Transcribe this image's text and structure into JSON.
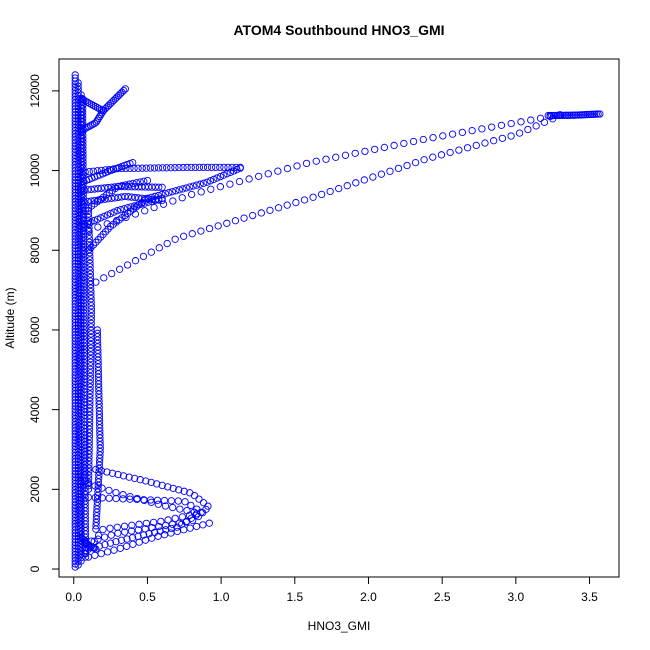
{
  "chart_data": {
    "type": "scatter",
    "title": "ATOM4 Southbound HNO3_GMI",
    "xlabel": "HNO3_GMI",
    "ylabel": "Altitude (m)",
    "xlim": [
      -0.1,
      3.7
    ],
    "ylim": [
      -200,
      12800
    ],
    "xticks": [
      0.0,
      0.5,
      1.0,
      1.5,
      2.0,
      2.5,
      3.0,
      3.5
    ],
    "xtick_labels": [
      "0.0",
      "0.5",
      "1.0",
      "1.5",
      "2.0",
      "2.5",
      "3.0",
      "3.5"
    ],
    "yticks": [
      0,
      2000,
      4000,
      6000,
      8000,
      10000,
      12000
    ],
    "ytick_labels": [
      "0",
      "2000",
      "4000",
      "6000",
      "8000",
      "10000",
      "12000"
    ],
    "marker": "open-circle",
    "point_color": "#0000ff",
    "grid": false,
    "legend": "none",
    "series": [
      {
        "comment_free": true,
        "segments": [
          {
            "points": [
              [
                0.01,
                50
              ],
              [
                0.01,
                12400
              ]
            ],
            "n": 160
          },
          {
            "points": [
              [
                0.03,
                100
              ],
              [
                0.03,
                12200
              ]
            ],
            "n": 150
          },
          {
            "points": [
              [
                0.05,
                200
              ],
              [
                0.05,
                11900
              ]
            ],
            "n": 140
          },
          {
            "points": [
              [
                0.08,
                300
              ],
              [
                0.06,
                11800
              ]
            ],
            "n": 140
          },
          {
            "points": [
              [
                0.1,
                2000
              ],
              [
                0.12,
                6500
              ],
              [
                0.1,
                9000
              ]
            ],
            "n": 80
          },
          {
            "points": [
              [
                0.15,
                1000
              ],
              [
                0.18,
                3000
              ],
              [
                0.16,
                6000
              ]
            ],
            "n": 60
          },
          {
            "points": [
              [
                0.05,
                11800
              ],
              [
                0.2,
                11500
              ],
              [
                0.35,
                12050
              ]
            ],
            "n": 25
          },
          {
            "points": [
              [
                0.05,
                11000
              ],
              [
                0.15,
                11200
              ],
              [
                0.2,
                11500
              ]
            ],
            "n": 15
          },
          {
            "points": [
              [
                0.05,
                9950
              ],
              [
                0.3,
                10050
              ],
              [
                0.8,
                10080
              ],
              [
                1.13,
                10080
              ]
            ],
            "n": 40
          },
          {
            "points": [
              [
                0.05,
                9700
              ],
              [
                0.25,
                10000
              ],
              [
                0.4,
                10200
              ]
            ],
            "n": 20
          },
          {
            "points": [
              [
                0.05,
                9500
              ],
              [
                0.3,
                9600
              ],
              [
                0.6,
                9580
              ]
            ],
            "n": 25
          },
          {
            "points": [
              [
                0.05,
                9200
              ],
              [
                0.35,
                9350
              ],
              [
                0.6,
                9250
              ]
            ],
            "n": 25
          },
          {
            "points": [
              [
                0.08,
                9000
              ],
              [
                0.3,
                9600
              ],
              [
                0.5,
                9750
              ]
            ],
            "n": 20
          },
          {
            "points": [
              [
                0.05,
                8600
              ],
              [
                0.3,
                9000
              ],
              [
                0.6,
                9300
              ]
            ],
            "n": 25
          },
          {
            "points": [
              [
                0.1,
                8000
              ],
              [
                0.25,
                8600
              ],
              [
                0.5,
                9300
              ],
              [
                0.9,
                9700
              ],
              [
                1.13,
                10060
              ]
            ],
            "n": 50
          },
          {
            "points": [
              [
                0.15,
                7200
              ],
              [
                0.7,
                8300
              ],
              [
                1.6,
                9300
              ],
              [
                2.4,
                10300
              ],
              [
                3.0,
                10900
              ],
              [
                3.25,
                11300
              ]
            ],
            "n": 55
          },
          {
            "points": [
              [
                0.1,
                8500
              ],
              [
                0.8,
                9400
              ],
              [
                1.6,
                10200
              ],
              [
                2.4,
                10800
              ],
              [
                3.0,
                11200
              ],
              [
                3.3,
                11400
              ]
            ],
            "n": 50
          },
          {
            "points": [
              [
                3.22,
                11380
              ],
              [
                3.4,
                11390
              ],
              [
                3.57,
                11420
              ]
            ],
            "n": 30
          },
          {
            "points": [
              [
                0.15,
                2500
              ],
              [
                0.5,
                2200
              ],
              [
                0.8,
                1900
              ],
              [
                0.92,
                1550
              ],
              [
                0.7,
                1050
              ],
              [
                0.3,
                700
              ],
              [
                0.1,
                500
              ]
            ],
            "n": 45
          },
          {
            "points": [
              [
                0.1,
                1800
              ],
              [
                0.4,
                1750
              ],
              [
                0.75,
                1700
              ],
              [
                0.88,
                1400
              ],
              [
                0.8,
                1200
              ],
              [
                0.3,
                900
              ],
              [
                0.12,
                700
              ]
            ],
            "n": 35
          },
          {
            "points": [
              [
                0.05,
                2200
              ],
              [
                0.3,
                1900
              ],
              [
                0.6,
                1600
              ],
              [
                0.85,
                1400
              ],
              [
                0.6,
                1200
              ],
              [
                0.2,
                1000
              ],
              [
                0.08,
                400
              ]
            ],
            "n": 35
          },
          {
            "points": [
              [
                0.1,
                300
              ],
              [
                0.3,
                500
              ],
              [
                0.55,
                800
              ],
              [
                0.92,
                1150
              ]
            ],
            "n": 20
          },
          {
            "points": [
              [
                0.05,
                800
              ],
              [
                0.1,
                600
              ],
              [
                0.15,
                500
              ]
            ],
            "n": 12
          }
        ]
      }
    ]
  }
}
